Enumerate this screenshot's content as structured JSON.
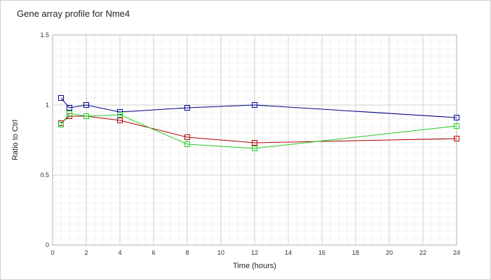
{
  "chart_data": {
    "type": "line",
    "title": "Gene array profile for Nme4",
    "xlabel": "Time (hours)",
    "ylabel": "Ratio to Ctrl",
    "xlim": [
      0,
      24
    ],
    "ylim": [
      0,
      1.5
    ],
    "x_ticks": [
      "0",
      "2",
      "4",
      "6",
      "8",
      "10",
      "12",
      "14",
      "16",
      "18",
      "20",
      "22",
      "24"
    ],
    "y_ticks": [
      "0",
      "0.5",
      "1",
      "1.5"
    ],
    "grid": true,
    "x": [
      0.5,
      1,
      2,
      4,
      8,
      12,
      24
    ],
    "series": [
      {
        "color": "#00008b",
        "values": [
          1.05,
          0.98,
          1.0,
          0.95,
          0.98,
          1.0,
          0.91
        ]
      },
      {
        "color": "#b00000",
        "values": [
          0.87,
          0.92,
          0.92,
          0.89,
          0.77,
          0.73,
          0.76
        ]
      },
      {
        "color": "#22cc22",
        "values": [
          0.86,
          0.94,
          0.92,
          0.93,
          0.72,
          0.69,
          0.85
        ]
      }
    ]
  }
}
